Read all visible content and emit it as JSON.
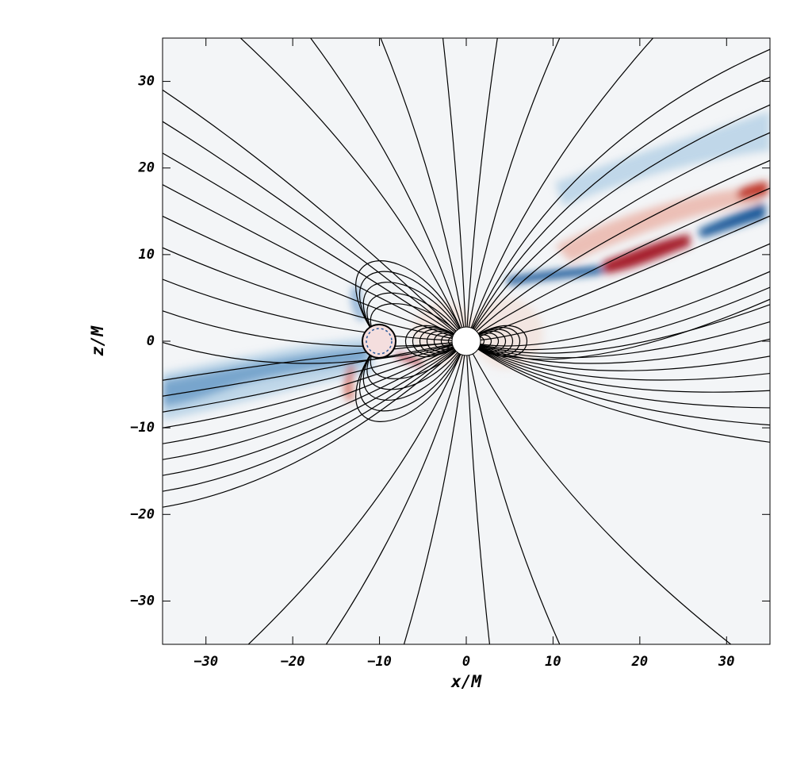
{
  "chart_data": {
    "type": "field",
    "x_label": "x/M",
    "y_label": "z/M",
    "xlim": [
      -35,
      35
    ],
    "ylim": [
      -35,
      35
    ],
    "xticks": [
      {
        "value": -30,
        "label": "−30"
      },
      {
        "value": -20,
        "label": "−20"
      },
      {
        "value": -10,
        "label": "−10"
      },
      0,
      10,
      20,
      30
    ],
    "yticks": [
      {
        "value": -30,
        "label": "−30"
      },
      {
        "value": -20,
        "label": "−20"
      },
      {
        "value": -10,
        "label": "−10"
      },
      0,
      10,
      20,
      30
    ]
  }
}
